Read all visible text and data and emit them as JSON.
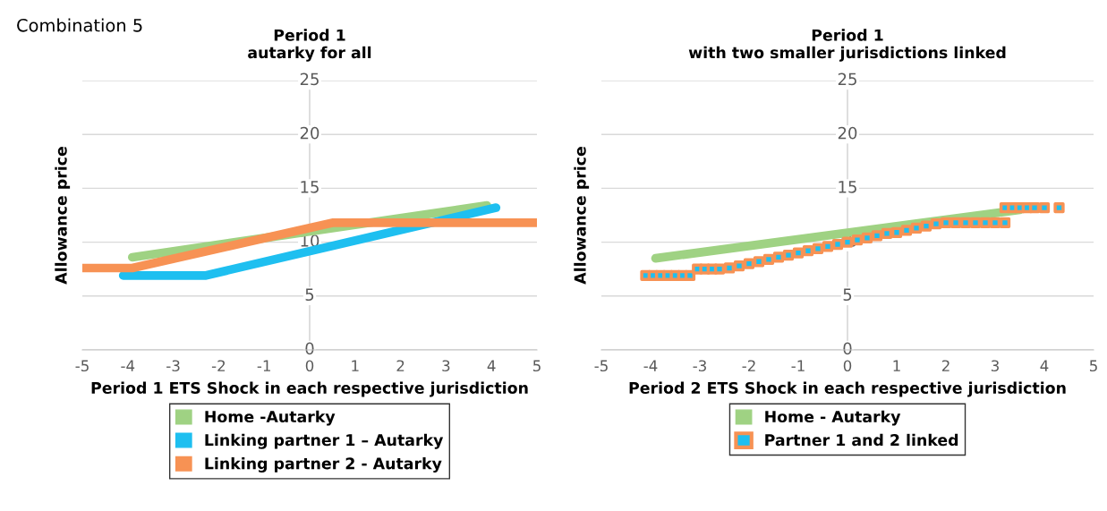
{
  "chart_data": [
    {
      "type": "line",
      "title": "Period 1\nautarky for all",
      "xlabel": "Period 1 ETS Shock in each respective jurisdiction",
      "ylabel": "Allowance price",
      "annotations": [
        "Combination 5"
      ],
      "xlim": [
        -5,
        5
      ],
      "xticks": [
        -5,
        -4,
        -3,
        -2,
        -1,
        0,
        1,
        2,
        3,
        4,
        5
      ],
      "ylim": [
        0,
        25
      ],
      "yticks": [
        0,
        5,
        10,
        15,
        20,
        25
      ],
      "grid": "y",
      "legend": "bottom",
      "series": [
        {
          "name": "Home -Autarky",
          "color": "#9fd283",
          "x": [
            -3.9,
            3.9
          ],
          "values": [
            8.6,
            13.4
          ]
        },
        {
          "name": "Linking partner 1 – Autarky",
          "color": "#1ebff0",
          "x": [
            -4.1,
            -2.3,
            4.1
          ],
          "values": [
            6.9,
            6.9,
            13.2
          ]
        },
        {
          "name": "Linking partner 2 - Autarky",
          "color": "#f79254",
          "x": [
            -5,
            -3.9,
            0.5,
            5
          ],
          "values": [
            7.6,
            7.6,
            11.8,
            11.8
          ]
        }
      ]
    },
    {
      "type": "line",
      "title": "Period 1\nwith two smaller jurisdictions linked",
      "xlabel": "Period 2 ETS Shock in each respective jurisdiction",
      "ylabel": "Allowance price",
      "xlim": [
        -5,
        5
      ],
      "xticks": [
        -5,
        -4,
        -3,
        -2,
        -1,
        0,
        1,
        2,
        3,
        4,
        5
      ],
      "ylim": [
        0,
        25
      ],
      "yticks": [
        0,
        5,
        10,
        15,
        20,
        25
      ],
      "grid": "y",
      "legend": "bottom",
      "series": [
        {
          "name": "Home - Autarky",
          "color": "#9fd283",
          "x": [
            -3.9,
            3.5
          ],
          "values": [
            8.5,
            13.0
          ]
        },
        {
          "name": "Partner 1 and 2 linked",
          "type": "scatter",
          "marker": "square",
          "color": "#1ebff0",
          "x": [
            -4.1,
            -3.95,
            -3.8,
            -3.65,
            -3.5,
            -3.35,
            -3.2,
            -3.05,
            -2.9,
            -2.75,
            -2.6,
            -2.4,
            -2.2,
            -2.0,
            -1.8,
            -1.6,
            -1.4,
            -1.2,
            -1.0,
            -0.8,
            -0.6,
            -0.4,
            -0.2,
            0,
            0.2,
            0.4,
            0.6,
            0.8,
            1.0,
            1.2,
            1.4,
            1.6,
            1.8,
            2.0,
            2.2,
            2.4,
            2.6,
            2.8,
            3.0,
            3.2,
            3.2,
            3.35,
            3.5,
            3.65,
            3.8,
            4.0,
            4.3
          ],
          "values": [
            6.9,
            6.9,
            6.9,
            6.9,
            6.9,
            6.9,
            6.9,
            7.5,
            7.5,
            7.5,
            7.5,
            7.6,
            7.8,
            8.0,
            8.2,
            8.4,
            8.6,
            8.8,
            9.0,
            9.2,
            9.4,
            9.6,
            9.8,
            10.0,
            10.2,
            10.4,
            10.6,
            10.8,
            10.9,
            11.1,
            11.3,
            11.5,
            11.7,
            11.8,
            11.8,
            11.8,
            11.8,
            11.8,
            11.8,
            11.8,
            13.2,
            13.2,
            13.2,
            13.2,
            13.2,
            13.2,
            13.2
          ]
        }
      ]
    }
  ]
}
